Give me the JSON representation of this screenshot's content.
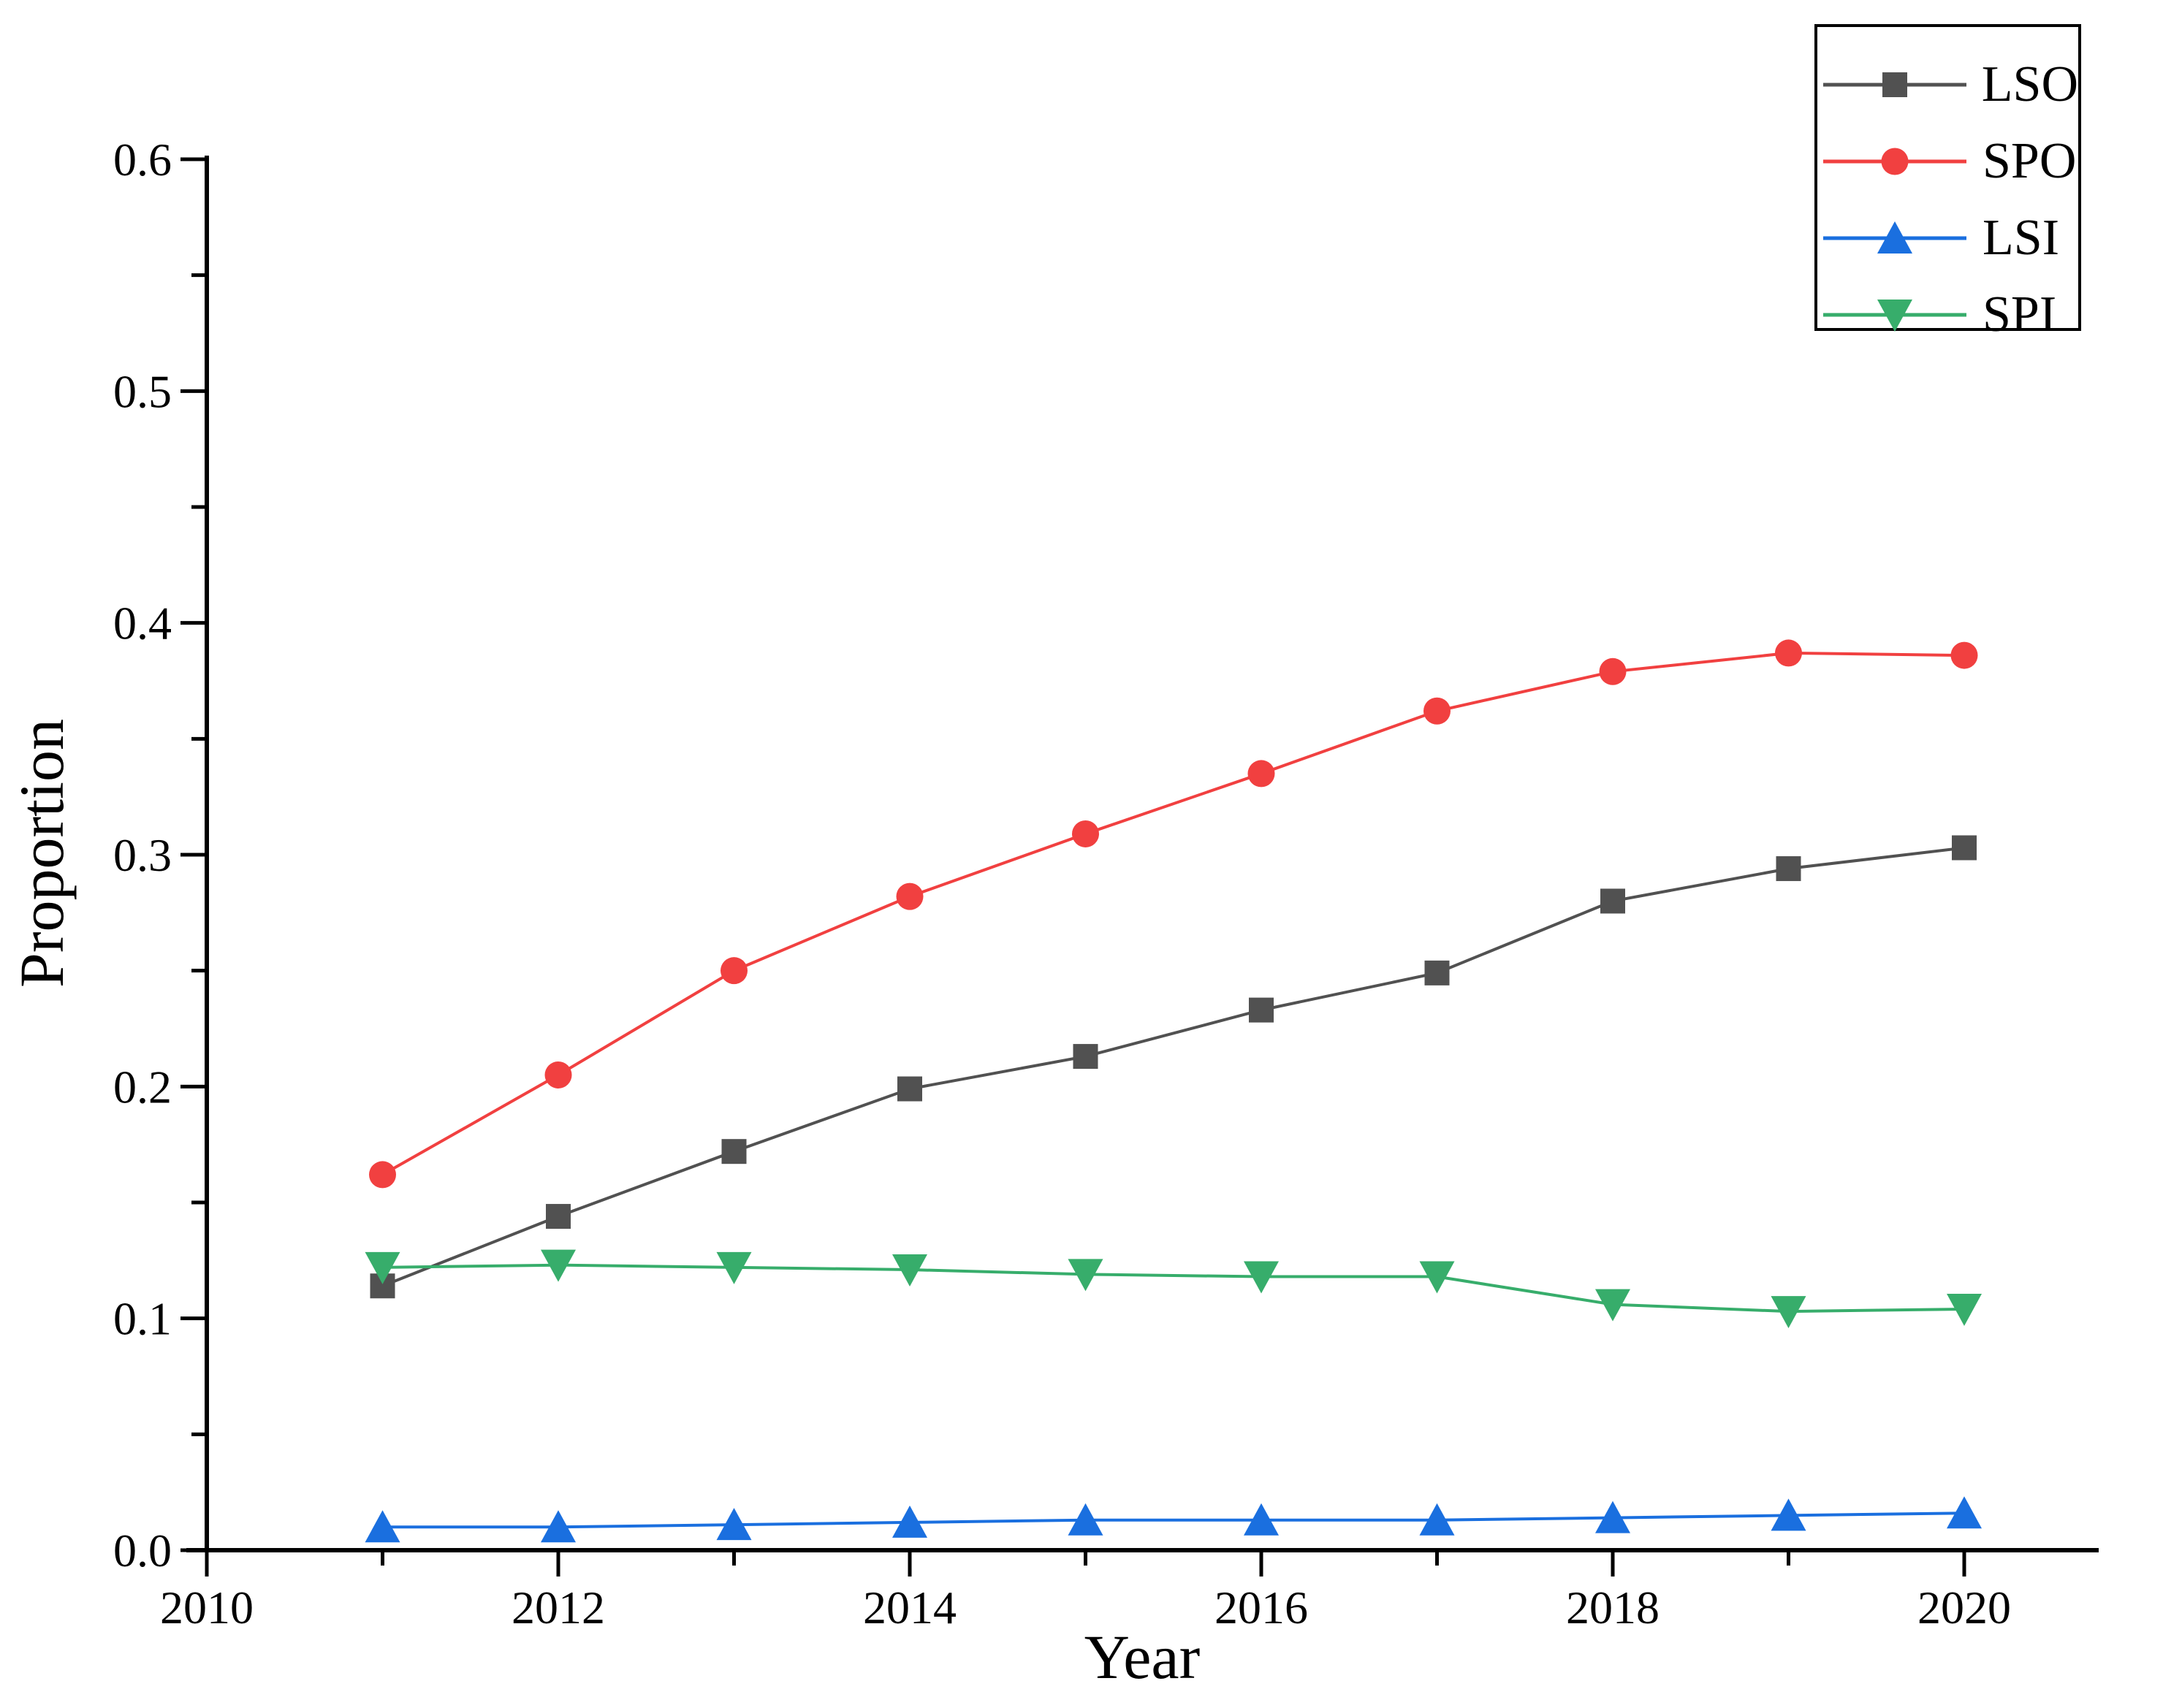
{
  "figure_title": "",
  "chart_data": {
    "type": "line",
    "title": "",
    "xlabel": "Year",
    "ylabel": "Proportion",
    "x": [
      2011,
      2012,
      2013,
      2014,
      2015,
      2016,
      2017,
      2018,
      2019,
      2020
    ],
    "series": [
      {
        "name": "LSO",
        "color": "#515151",
        "marker": "square",
        "values": [
          0.114,
          0.144,
          0.172,
          0.199,
          0.213,
          0.233,
          0.249,
          0.28,
          0.294,
          0.303
        ]
      },
      {
        "name": "SPO",
        "color": "#F14040",
        "marker": "circle",
        "values": [
          0.162,
          0.205,
          0.25,
          0.282,
          0.309,
          0.335,
          0.362,
          0.379,
          0.387,
          0.386
        ]
      },
      {
        "name": "LSI",
        "color": "#1A6FDF",
        "marker": "triangle-up",
        "values": [
          0.01,
          0.01,
          0.011,
          0.012,
          0.013,
          0.013,
          0.013,
          0.014,
          0.015,
          0.016
        ]
      },
      {
        "name": "SPI",
        "color": "#37AD6B",
        "marker": "triangle-down",
        "values": [
          0.122,
          0.123,
          0.122,
          0.121,
          0.119,
          0.118,
          0.118,
          0.106,
          0.103,
          0.104
        ]
      }
    ],
    "xlim": [
      2009.88,
      2020.76
    ],
    "ylim": [
      0.0,
      0.6
    ],
    "xtick_labels": [
      "2010",
      "2012",
      "2014",
      "2016",
      "2018",
      "2020"
    ],
    "xtick_values": [
      2010,
      2012,
      2014,
      2016,
      2018,
      2020
    ],
    "xminor_values": [
      2011,
      2013,
      2015,
      2017,
      2019
    ],
    "ytick_labels": [
      "0.0",
      "0.1",
      "0.2",
      "0.3",
      "0.4",
      "0.5",
      "0.6"
    ],
    "ytick_values": [
      0.0,
      0.1,
      0.2,
      0.3,
      0.4,
      0.5,
      0.6
    ],
    "yminor_values": [
      0.05,
      0.15,
      0.25,
      0.35,
      0.45,
      0.55
    ],
    "grid": false,
    "axis_color": "#000000",
    "legend_position": "top-right",
    "legend_entries": [
      "LSO",
      "SPO",
      "LSI",
      "SPI"
    ]
  }
}
